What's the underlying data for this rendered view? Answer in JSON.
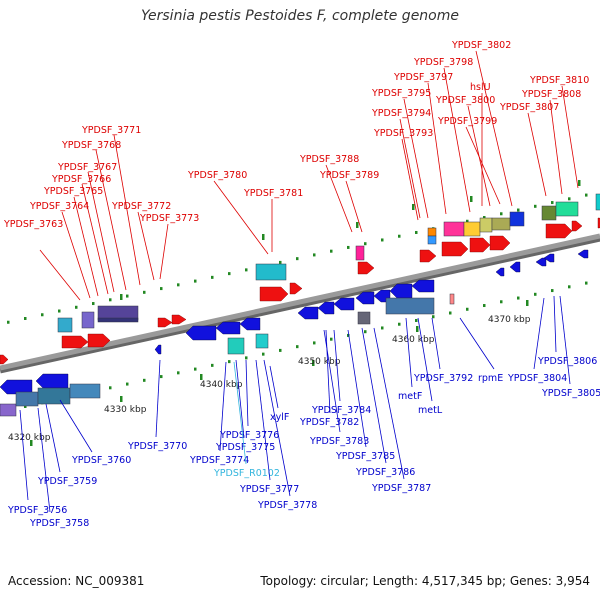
{
  "title": "Yersinia pestis Pestoides F, complete genome",
  "footer": {
    "accession": "Accession: NC_009381",
    "summary": "Topology: circular; Length: 4,517,345 bp; Genes: 3,954"
  },
  "colors": {
    "backbone": "#9a9a9a",
    "label_top": "#dd0000",
    "label_bottom": "#0000cc",
    "label_rna": "#33b5dd",
    "tick": "#228822"
  },
  "scale_labels": [
    "4320 kbp",
    "4330 kbp",
    "4340 kbp",
    "4350 kbp",
    "4360 kbp",
    "4370 kbp"
  ],
  "top_labels": [
    "YPDSF_3763",
    "YPDSF_3764",
    "YPDSF_3765",
    "YPDSF_3766",
    "YPDSF_3767",
    "YPDSF_3768",
    "YPDSF_3771",
    "YPDSF_3772",
    "YPDSF_3773",
    "YPDSF_3780",
    "YPDSF_3781",
    "YPDSF_3788",
    "YPDSF_3789",
    "YPDSF_3793",
    "YPDSF_3794",
    "YPDSF_3795",
    "YPDSF_3797",
    "YPDSF_3798",
    "YPDSF_3802",
    "hslU",
    "YPDSF_3800",
    "YPDSF_3799",
    "YPDSF_3807",
    "YPDSF_3808",
    "YPDSF_3810"
  ],
  "bottom_labels": [
    "YPDSF_3756",
    "YPDSF_3758",
    "YPDSF_3759",
    "YPDSF_3760",
    "YPDSF_3770",
    "YPDSF_3776",
    "YPDSF_3775",
    "YPDSF_3774",
    "YPDSF_R0102",
    "YPDSF_3777",
    "YPDSF_3778",
    "xylF",
    "YPDSF_3784",
    "YPDSF_3782",
    "YPDSF_3783",
    "YPDSF_3785",
    "YPDSF_3786",
    "YPDSF_3787",
    "metF",
    "metL",
    "YPDSF_3792",
    "rpmE",
    "YPDSF_3804",
    "YPDSF_3806",
    "YPDSF_3805"
  ]
}
